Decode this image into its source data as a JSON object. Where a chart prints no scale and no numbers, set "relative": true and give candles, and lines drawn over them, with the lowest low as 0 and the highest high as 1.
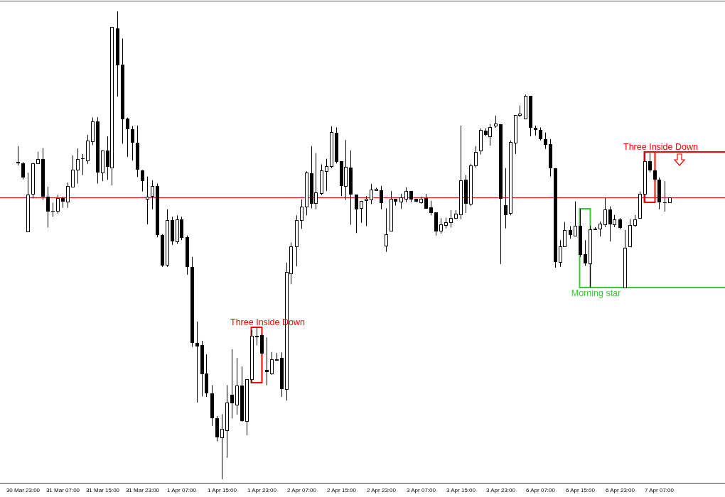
{
  "chart_data": {
    "type": "candlestick",
    "relative": true,
    "categories": [
      null,
      "30 Mar 23:00",
      null,
      null,
      null,
      null,
      null,
      null,
      null,
      "31 Mar 07:00",
      null,
      null,
      null,
      null,
      null,
      null,
      null,
      "31 Mar 15:00",
      null,
      null,
      null,
      null,
      null,
      null,
      null,
      "31 Mar 23:00",
      null,
      null,
      null,
      null,
      null,
      null,
      null,
      "1 Apr 07:00",
      null,
      null,
      null,
      null,
      null,
      null,
      null,
      "1 Apr 15:00",
      null,
      null,
      null,
      null,
      null,
      null,
      null,
      "1 Apr 23:00",
      null,
      null,
      null,
      null,
      null,
      null,
      null,
      "2 Apr 07:00",
      null,
      null,
      null,
      null,
      null,
      null,
      null,
      "2 Apr 15:00",
      null,
      null,
      null,
      null,
      null,
      null,
      null,
      "2 Apr 23:00",
      null,
      null,
      null,
      null,
      null,
      null,
      null,
      "3 Apr 07:00",
      null,
      null,
      null,
      null,
      null,
      null,
      null,
      "3 Apr 15:00",
      null,
      null,
      null,
      null,
      null,
      null,
      null,
      "3 Apr 23:00",
      null,
      null,
      null,
      null,
      null,
      null,
      null,
      "6 Apr 07:00",
      null,
      null,
      null,
      null,
      null,
      null,
      null,
      "6 Apr 15:00",
      null,
      null,
      null,
      null,
      null,
      null,
      null,
      "6 Apr 23:00",
      null,
      null,
      null,
      null,
      null,
      null,
      null,
      "7 Apr 07:00",
      null,
      null
    ],
    "ohlc": [
      [
        0.679,
        0.712,
        0.671,
        0.676
      ],
      [
        0.676,
        0.678,
        0.641,
        0.645
      ],
      [
        0.529,
        0.655,
        0.528,
        0.608
      ],
      [
        0.61,
        0.676,
        0.6,
        0.675
      ],
      [
        0.675,
        0.7,
        0.674,
        0.684
      ],
      [
        0.684,
        0.708,
        0.597,
        0.604
      ],
      [
        0.604,
        0.625,
        0.538,
        0.572
      ],
      [
        0.574,
        0.591,
        0.561,
        0.572
      ],
      [
        0.574,
        0.608,
        0.568,
        0.601
      ],
      [
        0.601,
        0.604,
        0.58,
        0.593
      ],
      [
        0.594,
        0.634,
        0.58,
        0.626
      ],
      [
        0.625,
        0.692,
        0.624,
        0.661
      ],
      [
        0.662,
        0.707,
        0.632,
        0.684
      ],
      [
        0.686,
        0.695,
        0.65,
        0.684
      ],
      [
        0.682,
        0.736,
        0.674,
        0.724
      ],
      [
        0.723,
        0.773,
        0.714,
        0.765
      ],
      [
        0.765,
        0.774,
        0.632,
        0.656
      ],
      [
        0.656,
        0.703,
        0.637,
        0.703
      ],
      [
        0.703,
        0.733,
        0.64,
        0.668
      ],
      [
        0.666,
        0.967,
        0.628,
        0.966
      ],
      [
        0.963,
        1,
        0.818,
        0.885
      ],
      [
        0.886,
        0.942,
        0.717,
        0.77
      ],
      [
        0.771,
        0.773,
        0.689,
        0.748
      ],
      [
        0.748,
        0.755,
        0.681,
        0.72
      ],
      [
        0.72,
        0.756,
        0.646,
        0.661
      ],
      [
        0.66,
        0.661,
        0.615,
        0.637
      ],
      [
        0.599,
        0.647,
        0.545,
        0.604
      ],
      [
        0.605,
        0.639,
        0.577,
        0.626
      ],
      [
        0.626,
        0.632,
        0.517,
        0.522
      ],
      [
        0.522,
        0.524,
        0.454,
        0.456
      ],
      [
        0.459,
        0.577,
        0.454,
        0.554
      ],
      [
        0.554,
        0.561,
        0.501,
        0.508
      ],
      [
        0.508,
        0.564,
        0.503,
        0.556
      ],
      [
        0.556,
        0.561,
        0.511,
        0.516
      ],
      [
        0.517,
        0.521,
        0.437,
        0.454
      ],
      [
        0.453,
        0.475,
        0.283,
        0.291
      ],
      [
        0.291,
        0.337,
        0.164,
        0.284
      ],
      [
        0.287,
        0.296,
        0.177,
        0.225
      ],
      [
        0.226,
        0.267,
        0.176,
        0.184
      ],
      [
        0.184,
        0.201,
        0.114,
        0.13
      ],
      [
        0.13,
        0.135,
        0.081,
        0.09
      ],
      [
        0.09,
        0.139,
        0,
        0.107
      ],
      [
        0.104,
        0.201,
        0.046,
        0.164
      ],
      [
        0.18,
        0.278,
        0.13,
        0.162
      ],
      [
        0.16,
        0.259,
        0.138,
        0.201
      ],
      [
        0.201,
        0.241,
        0.123,
        0.125
      ],
      [
        0.124,
        0.214,
        0.094,
        0.214
      ],
      [
        0.214,
        0.319,
        0.206,
        0.306
      ],
      [
        0.305,
        0.325,
        0.286,
        0.306
      ],
      [
        0.308,
        0.311,
        0.266,
        0.268
      ],
      [
        0.233,
        0.303,
        0.201,
        0.229
      ],
      [
        0.226,
        0.272,
        0.223,
        0.256
      ],
      [
        0.256,
        0.27,
        0.254,
        0.257
      ],
      [
        0.259,
        0.271,
        0.176,
        0.193
      ],
      [
        0.193,
        0.463,
        0.168,
        0.443
      ],
      [
        0.44,
        0.506,
        0.417,
        0.497
      ],
      [
        0.497,
        0.564,
        0.455,
        0.554
      ],
      [
        0.554,
        0.598,
        0.535,
        0.583
      ],
      [
        0.583,
        0.658,
        0.564,
        0.656
      ],
      [
        0.654,
        0.712,
        0.579,
        0.589
      ],
      [
        0.591,
        0.697,
        0.577,
        0.613
      ],
      [
        0.612,
        0.673,
        0.607,
        0.66
      ],
      [
        0.658,
        0.685,
        0.616,
        0.669
      ],
      [
        0.669,
        0.754,
        0.665,
        0.742
      ],
      [
        0.74,
        0.752,
        0.675,
        0.678
      ],
      [
        0.68,
        0.68,
        0.605,
        0.626
      ],
      [
        0.626,
        0.725,
        0.597,
        0.668
      ],
      [
        0.666,
        0.703,
        0.544,
        0.608
      ],
      [
        0.608,
        0.608,
        0.526,
        0.577
      ],
      [
        0.579,
        0.595,
        0.548,
        0.595
      ],
      [
        0.596,
        0.605,
        0.541,
        0.599
      ],
      [
        0.598,
        0.631,
        0.588,
        0.619
      ],
      [
        0.617,
        0.623,
        0.616,
        0.621
      ],
      [
        0.617,
        0.627,
        0.577,
        0.591
      ],
      [
        0.499,
        0.579,
        0.486,
        0.524
      ],
      [
        0.531,
        0.616,
        0.531,
        0.599
      ],
      [
        0.599,
        0.599,
        0.585,
        0.593
      ],
      [
        0.593,
        0.61,
        0.578,
        0.602
      ],
      [
        0.6,
        0.624,
        0.592,
        0.616
      ],
      [
        0.616,
        0.616,
        0.592,
        0.598
      ],
      [
        0.599,
        0.599,
        0.592,
        0.593
      ],
      [
        0.592,
        0.604,
        0.589,
        0.6
      ],
      [
        0.601,
        0.61,
        0.578,
        0.578
      ],
      [
        0.581,
        0.595,
        0.564,
        0.569
      ],
      [
        0.57,
        0.57,
        0.521,
        0.53
      ],
      [
        0.531,
        0.558,
        0.525,
        0.545
      ],
      [
        0.544,
        0.559,
        0.536,
        0.55
      ],
      [
        0.55,
        0.575,
        0.538,
        0.559
      ],
      [
        0.558,
        0.575,
        0.556,
        0.568
      ],
      [
        0.566,
        0.756,
        0.556,
        0.639
      ],
      [
        0.64,
        0.65,
        0.569,
        0.589
      ],
      [
        0.589,
        0.674,
        0.584,
        0.671
      ],
      [
        0.67,
        0.712,
        0.666,
        0.699
      ],
      [
        0.702,
        0.75,
        0.694,
        0.747
      ],
      [
        0.745,
        0.75,
        0.733,
        0.736
      ],
      [
        0.733,
        0.759,
        0.713,
        0.752
      ],
      [
        0.755,
        0.777,
        0.751,
        0.761
      ],
      [
        0.759,
        0.759,
        0.46,
        0.599
      ],
      [
        0.586,
        0.665,
        0.536,
        0.565
      ],
      [
        0.569,
        0.724,
        0.564,
        0.721
      ],
      [
        0.72,
        0.778,
        0.695,
        0.778
      ],
      [
        0.778,
        0.799,
        0.774,
        0.781
      ],
      [
        0.771,
        0.822,
        0.771,
        0.819
      ],
      [
        0.819,
        0.819,
        0.733,
        0.751
      ],
      [
        0.751,
        0.756,
        0.734,
        0.746
      ],
      [
        0.747,
        0.752,
        0.724,
        0.727
      ],
      [
        0.727,
        0.741,
        0.706,
        0.715
      ],
      [
        0.716,
        0.727,
        0.647,
        0.665
      ],
      [
        0.665,
        0.665,
        0.452,
        0.465
      ],
      [
        0.465,
        0.511,
        0.454,
        0.498
      ],
      [
        0.498,
        0.55,
        0.496,
        0.533
      ],
      [
        0.533,
        0.541,
        0.514,
        0.522
      ],
      [
        0.521,
        0.594,
        0.519,
        0.541
      ],
      [
        0.542,
        0.578,
        0.475,
        0.48
      ],
      [
        0.481,
        0.511,
        0.456,
        0.462
      ],
      [
        0.462,
        0.542,
        0.41,
        0.534
      ],
      [
        0.535,
        0.539,
        0.534,
        0.536
      ],
      [
        0.536,
        0.551,
        0.519,
        0.546
      ],
      [
        0.545,
        0.602,
        0.539,
        0.576
      ],
      [
        0.576,
        0.583,
        0.508,
        0.545
      ],
      [
        0.545,
        0.565,
        0.539,
        0.556
      ],
      [
        0.555,
        0.558,
        0.534,
        0.537
      ],
      [
        0.41,
        0.533,
        0.41,
        0.494
      ],
      [
        0.498,
        0.556,
        0.496,
        0.544
      ],
      [
        0.544,
        0.565,
        0.539,
        0.556
      ],
      [
        0.558,
        0.615,
        0.557,
        0.61
      ],
      [
        0.61,
        0.7,
        0.592,
        0.68
      ],
      [
        0.68,
        0.697,
        0.656,
        0.66
      ],
      [
        0.66,
        0.663,
        0.637,
        0.641
      ],
      [
        0.641,
        0.645,
        0.577,
        0.592
      ],
      [
        0.592,
        0.637,
        0.572,
        0.591
      ],
      [
        0.592,
        0.602,
        0.592,
        0.602
      ]
    ],
    "ref_lines": [
      {
        "axis": "y",
        "value": 0.602,
        "color": "#ff0000"
      }
    ],
    "annotations": [
      "Three Inside Down",
      "Morning star",
      "Three Inside Down"
    ]
  }
}
